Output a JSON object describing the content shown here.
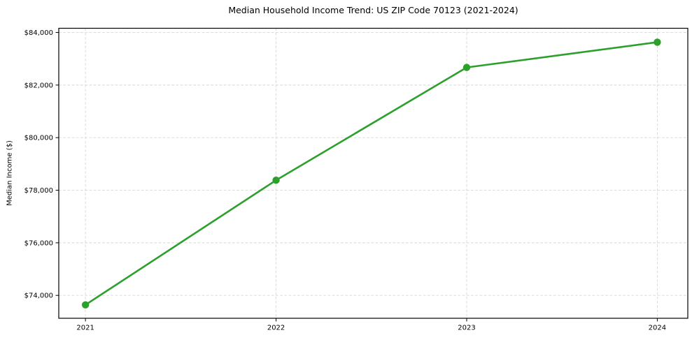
{
  "page": {
    "background": "#ffffff"
  },
  "chart_data": {
    "type": "line",
    "title": "Median Household Income Trend: US ZIP Code 70123 (2021-2024)",
    "xlabel": "",
    "ylabel": "Median Income ($)",
    "x": [
      2021,
      2022,
      2023,
      2024
    ],
    "xtick_labels": [
      "2021",
      "2022",
      "2023",
      "2024"
    ],
    "series": [
      {
        "name": "median-household-income",
        "values": [
          73640,
          78380,
          82670,
          83630
        ],
        "color": "#2ca02c",
        "marker": "circle"
      }
    ],
    "xlim": [
      2020.86,
      2024.16
    ],
    "ylim": [
      73130,
      84160
    ],
    "yticks": [
      74000,
      76000,
      78000,
      80000,
      82000,
      84000
    ],
    "ytick_labels": [
      "$74,000",
      "$76,000",
      "$78,000",
      "$80,000",
      "$82,000",
      "$84,000"
    ],
    "grid": {
      "show": true,
      "style": "dashed",
      "color": "#d8d8d8"
    },
    "axes": {
      "spine_color": "#000000",
      "tick_color": "#000000",
      "text_color": "#000000"
    },
    "legend": {
      "show": false
    }
  }
}
